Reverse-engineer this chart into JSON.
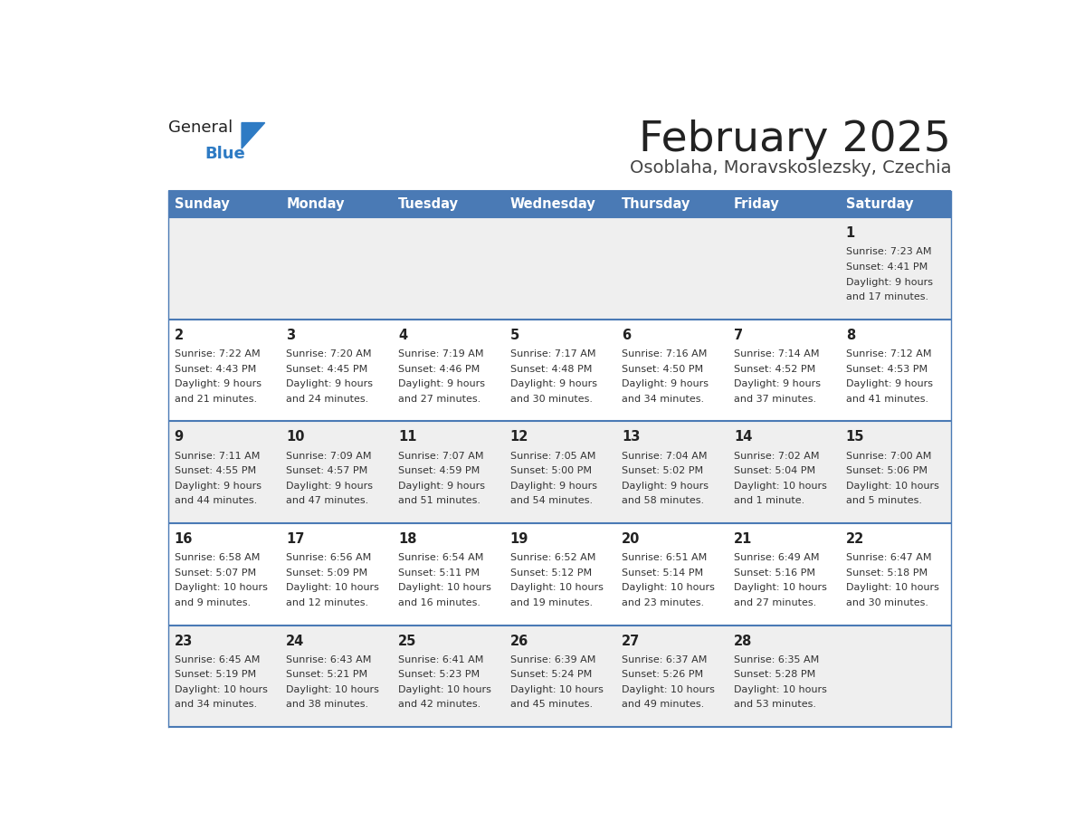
{
  "title": "February 2025",
  "subtitle": "Osoblaha, Moravskoslezsky, Czechia",
  "days_of_week": [
    "Sunday",
    "Monday",
    "Tuesday",
    "Wednesday",
    "Thursday",
    "Friday",
    "Saturday"
  ],
  "header_bg": "#4a7ab5",
  "header_text": "#ffffff",
  "row_bg_even": "#efefef",
  "row_bg_odd": "#ffffff",
  "border_color": "#4a7ab5",
  "day_num_color": "#222222",
  "cell_text_color": "#333333",
  "title_color": "#222222",
  "subtitle_color": "#444444",
  "logo_general_color": "#222222",
  "logo_blue_color": "#2e7bc4",
  "calendar_data": [
    {
      "day": 1,
      "col": 6,
      "row": 0,
      "sunrise": "7:23 AM",
      "sunset": "4:41 PM",
      "daylight_h": "9 hours",
      "daylight_m": "and 17 minutes."
    },
    {
      "day": 2,
      "col": 0,
      "row": 1,
      "sunrise": "7:22 AM",
      "sunset": "4:43 PM",
      "daylight_h": "9 hours",
      "daylight_m": "and 21 minutes."
    },
    {
      "day": 3,
      "col": 1,
      "row": 1,
      "sunrise": "7:20 AM",
      "sunset": "4:45 PM",
      "daylight_h": "9 hours",
      "daylight_m": "and 24 minutes."
    },
    {
      "day": 4,
      "col": 2,
      "row": 1,
      "sunrise": "7:19 AM",
      "sunset": "4:46 PM",
      "daylight_h": "9 hours",
      "daylight_m": "and 27 minutes."
    },
    {
      "day": 5,
      "col": 3,
      "row": 1,
      "sunrise": "7:17 AM",
      "sunset": "4:48 PM",
      "daylight_h": "9 hours",
      "daylight_m": "and 30 minutes."
    },
    {
      "day": 6,
      "col": 4,
      "row": 1,
      "sunrise": "7:16 AM",
      "sunset": "4:50 PM",
      "daylight_h": "9 hours",
      "daylight_m": "and 34 minutes."
    },
    {
      "day": 7,
      "col": 5,
      "row": 1,
      "sunrise": "7:14 AM",
      "sunset": "4:52 PM",
      "daylight_h": "9 hours",
      "daylight_m": "and 37 minutes."
    },
    {
      "day": 8,
      "col": 6,
      "row": 1,
      "sunrise": "7:12 AM",
      "sunset": "4:53 PM",
      "daylight_h": "9 hours",
      "daylight_m": "and 41 minutes."
    },
    {
      "day": 9,
      "col": 0,
      "row": 2,
      "sunrise": "7:11 AM",
      "sunset": "4:55 PM",
      "daylight_h": "9 hours",
      "daylight_m": "and 44 minutes."
    },
    {
      "day": 10,
      "col": 1,
      "row": 2,
      "sunrise": "7:09 AM",
      "sunset": "4:57 PM",
      "daylight_h": "9 hours",
      "daylight_m": "and 47 minutes."
    },
    {
      "day": 11,
      "col": 2,
      "row": 2,
      "sunrise": "7:07 AM",
      "sunset": "4:59 PM",
      "daylight_h": "9 hours",
      "daylight_m": "and 51 minutes."
    },
    {
      "day": 12,
      "col": 3,
      "row": 2,
      "sunrise": "7:05 AM",
      "sunset": "5:00 PM",
      "daylight_h": "9 hours",
      "daylight_m": "and 54 minutes."
    },
    {
      "day": 13,
      "col": 4,
      "row": 2,
      "sunrise": "7:04 AM",
      "sunset": "5:02 PM",
      "daylight_h": "9 hours",
      "daylight_m": "and 58 minutes."
    },
    {
      "day": 14,
      "col": 5,
      "row": 2,
      "sunrise": "7:02 AM",
      "sunset": "5:04 PM",
      "daylight_h": "10 hours",
      "daylight_m": "and 1 minute."
    },
    {
      "day": 15,
      "col": 6,
      "row": 2,
      "sunrise": "7:00 AM",
      "sunset": "5:06 PM",
      "daylight_h": "10 hours",
      "daylight_m": "and 5 minutes."
    },
    {
      "day": 16,
      "col": 0,
      "row": 3,
      "sunrise": "6:58 AM",
      "sunset": "5:07 PM",
      "daylight_h": "10 hours",
      "daylight_m": "and 9 minutes."
    },
    {
      "day": 17,
      "col": 1,
      "row": 3,
      "sunrise": "6:56 AM",
      "sunset": "5:09 PM",
      "daylight_h": "10 hours",
      "daylight_m": "and 12 minutes."
    },
    {
      "day": 18,
      "col": 2,
      "row": 3,
      "sunrise": "6:54 AM",
      "sunset": "5:11 PM",
      "daylight_h": "10 hours",
      "daylight_m": "and 16 minutes."
    },
    {
      "day": 19,
      "col": 3,
      "row": 3,
      "sunrise": "6:52 AM",
      "sunset": "5:12 PM",
      "daylight_h": "10 hours",
      "daylight_m": "and 19 minutes."
    },
    {
      "day": 20,
      "col": 4,
      "row": 3,
      "sunrise": "6:51 AM",
      "sunset": "5:14 PM",
      "daylight_h": "10 hours",
      "daylight_m": "and 23 minutes."
    },
    {
      "day": 21,
      "col": 5,
      "row": 3,
      "sunrise": "6:49 AM",
      "sunset": "5:16 PM",
      "daylight_h": "10 hours",
      "daylight_m": "and 27 minutes."
    },
    {
      "day": 22,
      "col": 6,
      "row": 3,
      "sunrise": "6:47 AM",
      "sunset": "5:18 PM",
      "daylight_h": "10 hours",
      "daylight_m": "and 30 minutes."
    },
    {
      "day": 23,
      "col": 0,
      "row": 4,
      "sunrise": "6:45 AM",
      "sunset": "5:19 PM",
      "daylight_h": "10 hours",
      "daylight_m": "and 34 minutes."
    },
    {
      "day": 24,
      "col": 1,
      "row": 4,
      "sunrise": "6:43 AM",
      "sunset": "5:21 PM",
      "daylight_h": "10 hours",
      "daylight_m": "and 38 minutes."
    },
    {
      "day": 25,
      "col": 2,
      "row": 4,
      "sunrise": "6:41 AM",
      "sunset": "5:23 PM",
      "daylight_h": "10 hours",
      "daylight_m": "and 42 minutes."
    },
    {
      "day": 26,
      "col": 3,
      "row": 4,
      "sunrise": "6:39 AM",
      "sunset": "5:24 PM",
      "daylight_h": "10 hours",
      "daylight_m": "and 45 minutes."
    },
    {
      "day": 27,
      "col": 4,
      "row": 4,
      "sunrise": "6:37 AM",
      "sunset": "5:26 PM",
      "daylight_h": "10 hours",
      "daylight_m": "and 49 minutes."
    },
    {
      "day": 28,
      "col": 5,
      "row": 4,
      "sunrise": "6:35 AM",
      "sunset": "5:28 PM",
      "daylight_h": "10 hours",
      "daylight_m": "and 53 minutes."
    }
  ]
}
